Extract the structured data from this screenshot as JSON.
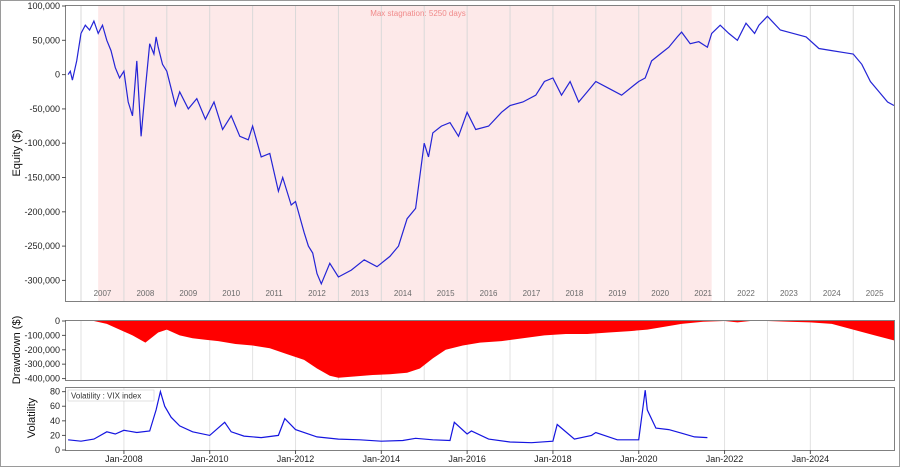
{
  "chart_data": [
    {
      "type": "line",
      "name": "equity",
      "ylabel": "Equity ($)",
      "ylim": [
        -330000,
        100000
      ],
      "yticks": [
        100000,
        50000,
        0,
        -50000,
        -100000,
        -150000,
        -200000,
        -250000,
        -300000
      ],
      "ytick_labels": [
        "100,000",
        "50,000",
        "0",
        "-50,000",
        "-100,000",
        "-150,000",
        "-200,000",
        "-250,000",
        "-300,000"
      ],
      "xlim": [
        2006.65,
        2025.95
      ],
      "annotation": "Max stagnation: 5250 days",
      "stagnation_range": [
        2007.4,
        2021.7
      ],
      "stagnation_color": "#fde9e9",
      "line_color": "#2424d6",
      "year_labels": [
        "2007",
        "2008",
        "2009",
        "2010",
        "2011",
        "2012",
        "2013",
        "2014",
        "2015",
        "2016",
        "2017",
        "2018",
        "2019",
        "2020",
        "2021",
        "2022",
        "2023",
        "2024",
        "2025"
      ],
      "x": [
        2006.7,
        2006.75,
        2006.8,
        2006.9,
        2007.0,
        2007.1,
        2007.2,
        2007.3,
        2007.4,
        2007.5,
        2007.6,
        2007.7,
        2007.8,
        2007.9,
        2008.0,
        2008.1,
        2008.2,
        2008.3,
        2008.4,
        2008.5,
        2008.6,
        2008.7,
        2008.75,
        2008.8,
        2008.9,
        2009.0,
        2009.1,
        2009.2,
        2009.3,
        2009.5,
        2009.7,
        2009.9,
        2010.1,
        2010.3,
        2010.5,
        2010.7,
        2010.9,
        2011.0,
        2011.2,
        2011.4,
        2011.6,
        2011.7,
        2011.9,
        2012.0,
        2012.2,
        2012.3,
        2012.4,
        2012.5,
        2012.6,
        2012.8,
        2013.0,
        2013.3,
        2013.6,
        2013.9,
        2014.2,
        2014.4,
        2014.6,
        2014.8,
        2015.0,
        2015.1,
        2015.2,
        2015.4,
        2015.6,
        2015.8,
        2016.0,
        2016.2,
        2016.5,
        2016.8,
        2017.0,
        2017.3,
        2017.6,
        2017.8,
        2018.0,
        2018.2,
        2018.4,
        2018.6,
        2018.8,
        2019.0,
        2019.3,
        2019.6,
        2019.9,
        2020.0,
        2020.15,
        2020.3,
        2020.5,
        2020.7,
        2020.9,
        2021.0,
        2021.2,
        2021.4,
        2021.6,
        2021.7,
        2021.9,
        2022.1,
        2022.3,
        2022.5,
        2022.7,
        2022.8,
        2023.0,
        2023.3,
        2023.6,
        2023.9,
        2024.2,
        2024.5,
        2024.8,
        2025.0,
        2025.2,
        2025.4,
        2025.6,
        2025.8,
        2025.95
      ],
      "y": [
        0,
        5000,
        -8000,
        20000,
        60000,
        72000,
        65000,
        78000,
        60000,
        72000,
        50000,
        35000,
        10000,
        -5000,
        5000,
        -40000,
        -60000,
        20000,
        -90000,
        -20000,
        45000,
        30000,
        55000,
        40000,
        15000,
        5000,
        -20000,
        -45000,
        -25000,
        -50000,
        -35000,
        -65000,
        -40000,
        -80000,
        -60000,
        -90000,
        -95000,
        -75000,
        -120000,
        -115000,
        -170000,
        -150000,
        -190000,
        -185000,
        -230000,
        -250000,
        -260000,
        -290000,
        -305000,
        -275000,
        -295000,
        -285000,
        -270000,
        -280000,
        -265000,
        -250000,
        -210000,
        -195000,
        -100000,
        -120000,
        -85000,
        -75000,
        -70000,
        -90000,
        -55000,
        -80000,
        -75000,
        -55000,
        -45000,
        -40000,
        -30000,
        -10000,
        -5000,
        -30000,
        -10000,
        -40000,
        -25000,
        -10000,
        -20000,
        -30000,
        -15000,
        -10000,
        -5000,
        20000,
        30000,
        40000,
        55000,
        62000,
        45000,
        48000,
        40000,
        60000,
        72000,
        60000,
        50000,
        75000,
        60000,
        72000,
        85000,
        65000,
        60000,
        55000,
        38000,
        35000,
        32000,
        30000,
        15000,
        -10000,
        -25000,
        -40000,
        -45000
      ]
    },
    {
      "type": "area",
      "name": "drawdown",
      "ylabel": "Drawdown ($)",
      "ylim": [
        -410000,
        0
      ],
      "yticks": [
        0,
        -100000,
        -200000,
        -300000,
        -400000
      ],
      "ytick_labels": [
        "0",
        "-100,000",
        "-200,000",
        "-300,000",
        "-400,000"
      ],
      "fill_color": "#ff0000",
      "x": [
        2006.7,
        2007.3,
        2007.6,
        2007.9,
        2008.2,
        2008.5,
        2008.8,
        2009.0,
        2009.3,
        2009.6,
        2009.9,
        2010.2,
        2010.6,
        2011.0,
        2011.4,
        2011.8,
        2012.2,
        2012.5,
        2012.8,
        2013.0,
        2013.4,
        2013.8,
        2014.2,
        2014.6,
        2014.9,
        2015.2,
        2015.5,
        2015.9,
        2016.3,
        2016.8,
        2017.3,
        2017.8,
        2018.3,
        2018.8,
        2019.3,
        2019.8,
        2020.2,
        2020.6,
        2021.0,
        2021.5,
        2022.0,
        2022.3,
        2022.6,
        2023.0,
        2023.5,
        2024.0,
        2024.5,
        2025.0,
        2025.5,
        2025.95
      ],
      "y": [
        0,
        0,
        -20000,
        -60000,
        -100000,
        -150000,
        -80000,
        -60000,
        -100000,
        -120000,
        -130000,
        -140000,
        -160000,
        -170000,
        -190000,
        -230000,
        -270000,
        -330000,
        -380000,
        -395000,
        -385000,
        -375000,
        -370000,
        -360000,
        -330000,
        -260000,
        -200000,
        -170000,
        -150000,
        -140000,
        -120000,
        -100000,
        -90000,
        -90000,
        -80000,
        -70000,
        -60000,
        -40000,
        -20000,
        -5000,
        0,
        -10000,
        0,
        0,
        -5000,
        -10000,
        -20000,
        -60000,
        -100000,
        -135000
      ]
    },
    {
      "type": "line",
      "name": "volatility",
      "ylabel": "Volatility",
      "legend": "Volatility : VIX index",
      "ylim": [
        0,
        85
      ],
      "yticks": [
        0,
        20,
        40,
        60,
        80
      ],
      "ytick_labels": [
        "0",
        "20",
        "40",
        "60",
        "80"
      ],
      "line_color": "#1515e0",
      "x_tick_labels": [
        "Jan-2008",
        "Jan-2010",
        "Jan-2012",
        "Jan-2014",
        "Jan-2016",
        "Jan-2018",
        "Jan-2020",
        "Jan-2022",
        "Jan-2024"
      ],
      "x_tick_years": [
        2008,
        2010,
        2012,
        2014,
        2016,
        2018,
        2020,
        2022,
        2024
      ],
      "x": [
        2006.7,
        2007.0,
        2007.3,
        2007.6,
        2007.8,
        2008.0,
        2008.3,
        2008.6,
        2008.75,
        2008.85,
        2008.95,
        2009.1,
        2009.3,
        2009.6,
        2010.0,
        2010.35,
        2010.5,
        2010.8,
        2011.2,
        2011.6,
        2011.75,
        2012.0,
        2012.5,
        2013.0,
        2013.5,
        2014.0,
        2014.5,
        2014.8,
        2015.2,
        2015.6,
        2015.7,
        2016.0,
        2016.1,
        2016.5,
        2017.0,
        2017.5,
        2018.0,
        2018.1,
        2018.5,
        2018.9,
        2019.0,
        2019.5,
        2020.0,
        2020.15,
        2020.2,
        2020.4,
        2020.7,
        2021.0,
        2021.3,
        2021.6
      ],
      "y": [
        14,
        12,
        15,
        25,
        22,
        27,
        24,
        26,
        55,
        80,
        60,
        45,
        33,
        25,
        20,
        38,
        25,
        19,
        17,
        20,
        43,
        28,
        18,
        15,
        14,
        12,
        13,
        16,
        14,
        13,
        38,
        22,
        26,
        15,
        11,
        10,
        12,
        35,
        15,
        20,
        24,
        14,
        14,
        82,
        55,
        30,
        28,
        23,
        18,
        17
      ]
    }
  ]
}
